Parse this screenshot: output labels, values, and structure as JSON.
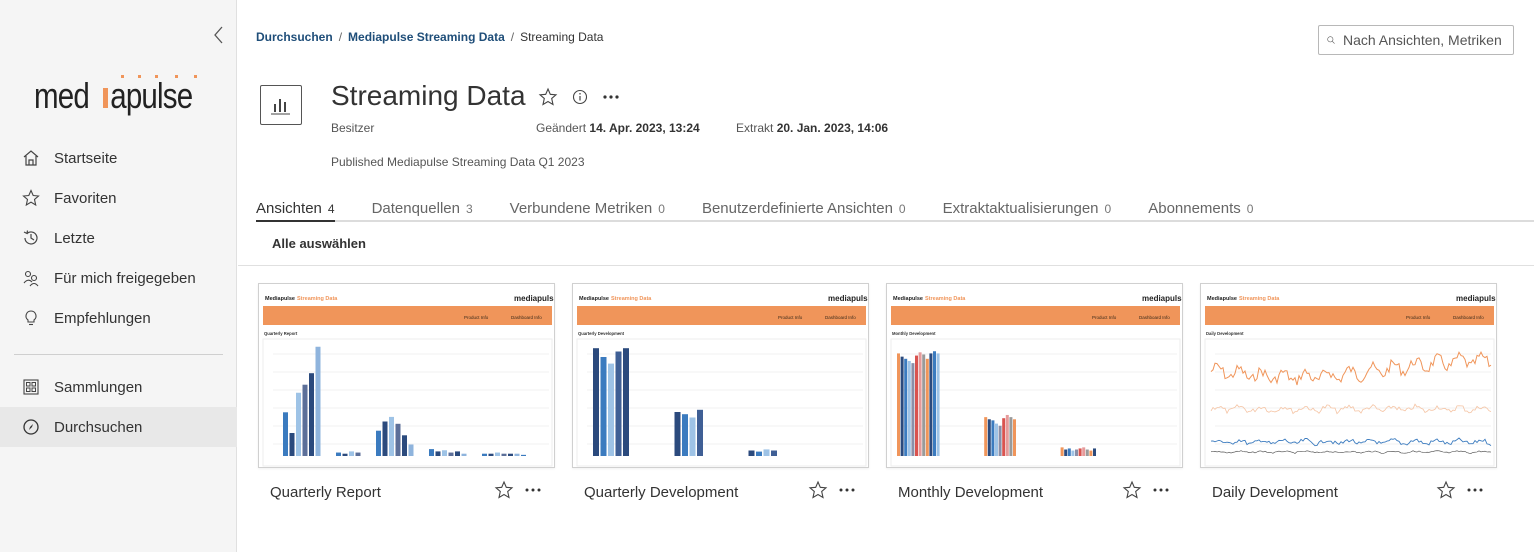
{
  "sidebar": {
    "logo_text": "mediapulse",
    "items": [
      {
        "label": "Startseite",
        "icon": "home-icon"
      },
      {
        "label": "Favoriten",
        "icon": "star-icon"
      },
      {
        "label": "Letzte",
        "icon": "recent-icon"
      },
      {
        "label": "Für mich freigegeben",
        "icon": "shared-icon"
      },
      {
        "label": "Empfehlungen",
        "icon": "lightbulb-icon"
      }
    ],
    "items2": [
      {
        "label": "Sammlungen",
        "icon": "collections-icon"
      },
      {
        "label": "Durchsuchen",
        "icon": "explore-icon",
        "active": true
      }
    ]
  },
  "breadcrumb": {
    "items": [
      "Durchsuchen",
      "Mediapulse Streaming Data",
      "Streaming Data"
    ]
  },
  "search": {
    "placeholder": "Nach Ansichten, Metriken"
  },
  "header": {
    "title": "Streaming Data",
    "owner_label": "Besitzer",
    "modified_label": "Geändert",
    "modified_value": "14. Apr. 2023, 13:24",
    "extract_label": "Extrakt",
    "extract_value": "20. Jan. 2023, 14:06",
    "description": "Published Mediapulse Streaming Data Q1 2023"
  },
  "tabs": [
    {
      "label": "Ansichten",
      "count": "4",
      "active": true
    },
    {
      "label": "Datenquellen",
      "count": "3"
    },
    {
      "label": "Verbundene Metriken",
      "count": "0"
    },
    {
      "label": "Benutzerdefinierte Ansichten",
      "count": "0"
    },
    {
      "label": "Extraktaktualisierungen",
      "count": "0"
    },
    {
      "label": "Abonnements",
      "count": "0"
    }
  ],
  "select_all_label": "Alle auswählen",
  "thumbnail_header": {
    "title_left": "Mediapulse",
    "title_right": "Streaming Data",
    "logo": "mediapulse",
    "product_info": "Product Info",
    "dashboard_info": "Dashboard Info"
  },
  "cards": [
    {
      "title": "Quarterly Report",
      "subtitle": "Quarterly Report",
      "kind": "quarterly-report"
    },
    {
      "title": "Quarterly Development",
      "subtitle": "Quarterly Development",
      "kind": "quarterly-dev"
    },
    {
      "title": "Monthly Development",
      "subtitle": "Monthly Development",
      "kind": "monthly-dev"
    },
    {
      "title": "Daily Development",
      "subtitle": "Daily Development",
      "kind": "daily-dev"
    }
  ],
  "colors": {
    "accent_orange": "#f0955a",
    "navy": "#2b4a7d",
    "blue": "#3b7bbf",
    "light_blue": "#9ec3e6",
    "red": "#d9534f"
  }
}
